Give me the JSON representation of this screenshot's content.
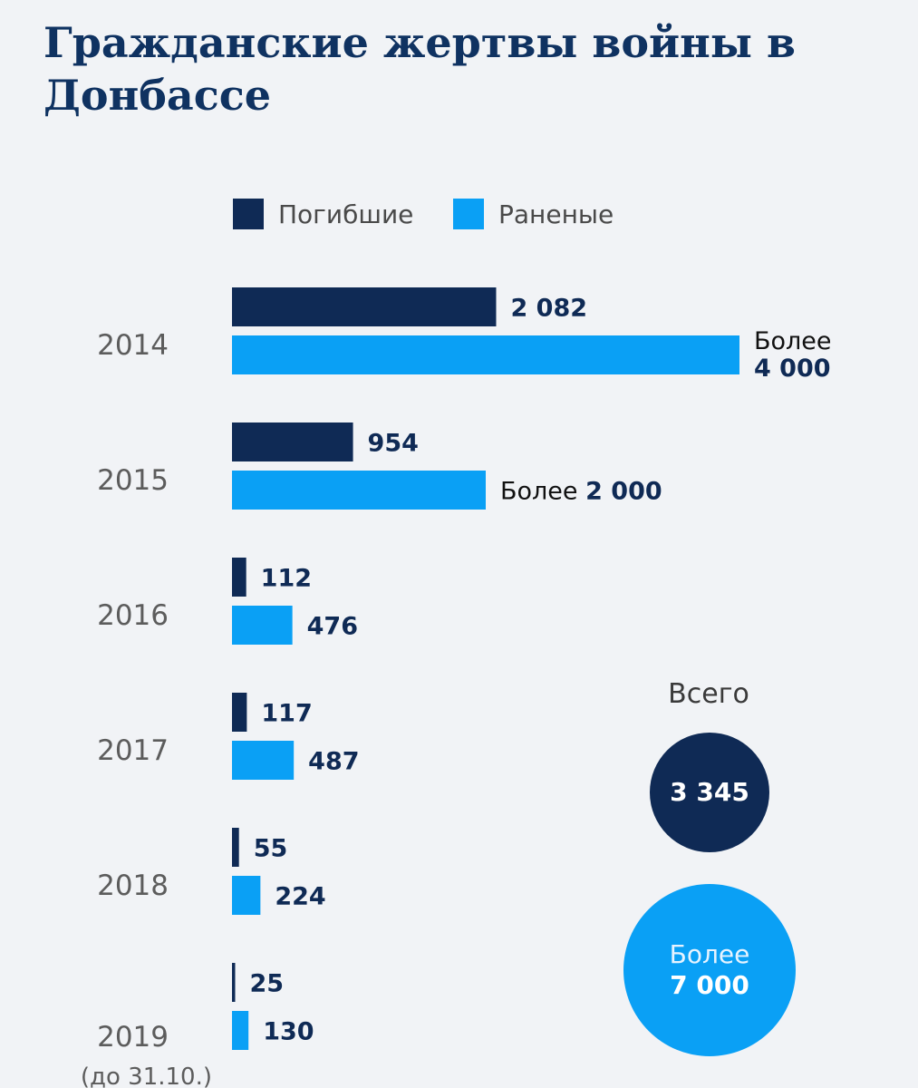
{
  "title": "Гражданские жертвы войны в Донбассе",
  "legend": [
    {
      "label": "Погибшие",
      "color": "#0f2a55"
    },
    {
      "label": "Раненые",
      "color": "#0aa0f5"
    }
  ],
  "chart_data": {
    "type": "bar",
    "orientation": "horizontal",
    "title": "Гражданские жертвы войны в Донбассе",
    "categories": [
      "2014",
      "2015",
      "2016",
      "2017",
      "2018",
      "2019"
    ],
    "category_notes": [
      "",
      "",
      "",
      "",
      "",
      "(до 31.10.)"
    ],
    "series": [
      {
        "name": "Погибшие",
        "color": "#0f2a55",
        "values": [
          2082,
          954,
          112,
          117,
          55,
          25
        ],
        "labels": [
          "2 082",
          "954",
          "112",
          "117",
          "55",
          "25"
        ],
        "label_prefixes": [
          "",
          "",
          "",
          "",
          "",
          ""
        ]
      },
      {
        "name": "Раненые",
        "color": "#0aa0f5",
        "values": [
          4000,
          2000,
          476,
          487,
          224,
          130
        ],
        "labels": [
          "4 000",
          "2 000",
          "476",
          "487",
          "224",
          "130"
        ],
        "label_prefixes": [
          "Более",
          "Более",
          "",
          "",
          "",
          ""
        ]
      }
    ],
    "xlim": [
      0,
      4000
    ],
    "legend_position": "top",
    "grid": false
  },
  "totals": {
    "heading": "Всего",
    "killed": {
      "value": 3345,
      "label": "3 345",
      "color": "#0f2a55"
    },
    "wounded": {
      "value": 7000,
      "prefix": "Более",
      "label": "7 000",
      "color": "#0aa0f5"
    }
  }
}
